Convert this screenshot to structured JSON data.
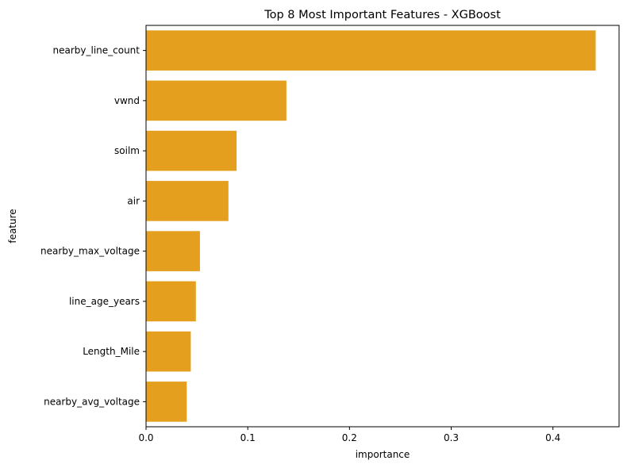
{
  "chart_data": {
    "type": "bar",
    "orientation": "horizontal",
    "title": "Top 8 Most Important Features - XGBoost",
    "xlabel": "importance",
    "ylabel": "feature",
    "categories": [
      "nearby_line_count",
      "vwnd",
      "soilm",
      "air",
      "nearby_max_voltage",
      "line_age_years",
      "Length_Mile",
      "nearby_avg_voltage"
    ],
    "values": [
      0.442,
      0.138,
      0.089,
      0.081,
      0.053,
      0.049,
      0.044,
      0.04
    ],
    "xlim": [
      0,
      0.465
    ],
    "xticks": [
      "0.0",
      "0.1",
      "0.2",
      "0.3",
      "0.4"
    ],
    "bar_color": "#e49f1f",
    "grid": false,
    "legend": "none"
  }
}
